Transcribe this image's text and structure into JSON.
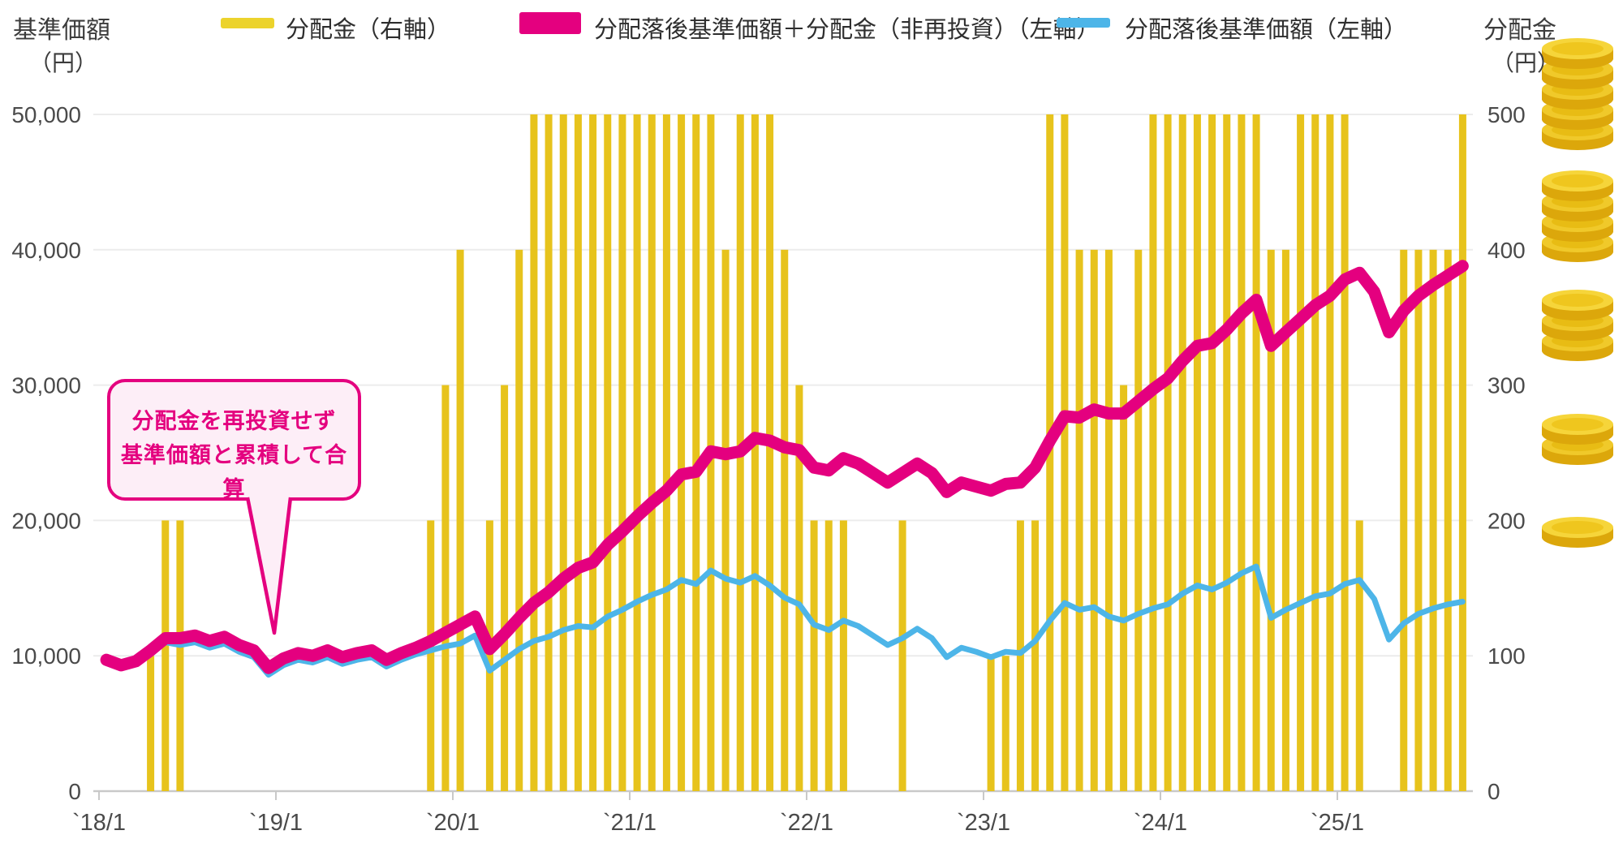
{
  "header": {
    "left_axis_title": "基準価額",
    "left_axis_unit": "（円）",
    "right_axis_title": "分配金",
    "right_axis_unit": "（円）",
    "legend": [
      {
        "label": "分配金（右軸）",
        "color": "#ecd32c",
        "type": "bar"
      },
      {
        "label": "分配落後基準価額＋分配金（非再投資）（左軸）",
        "color": "#e4007f",
        "type": "thick-line"
      },
      {
        "label": "分配落後基準価額（左軸）",
        "color": "#4db5e8",
        "type": "line"
      }
    ]
  },
  "annotation": {
    "line1": "分配金を再投資せず",
    "line2": "基準価額と累積して合算",
    "color": "#e4007f"
  },
  "colors": {
    "bar": "#e7c31c",
    "nav_plus_line": "#e4007f",
    "nav_line": "#4db5e8",
    "grid": "#ececec",
    "axis": "#c9c9c9",
    "tick_text": "#4a4a4a",
    "coin_top": "#f6d53a",
    "coin_side": "#dca70b"
  },
  "chart_data": {
    "type": "combo (monthly bars + two lines)",
    "months_start": "2018-01",
    "months_count": 93,
    "x_tick_labels": [
      "`18/1",
      "`19/1",
      "`20/1",
      "`21/1",
      "`22/1",
      "`23/1",
      "`24/1",
      "`25/1"
    ],
    "left_axis": {
      "label": "基準価額（円）",
      "range": [
        0,
        50000
      ],
      "tick_labels": [
        "0",
        "10,000",
        "20,000",
        "30,000",
        "40,000",
        "50,000"
      ]
    },
    "right_axis": {
      "label": "分配金（円）",
      "range": [
        0,
        500
      ],
      "tick_labels": [
        "0",
        "100",
        "200",
        "300",
        "400",
        "500"
      ]
    },
    "grid": "horizontal only",
    "legend_position": "top",
    "series": [
      {
        "name": "分配金（右軸）",
        "type": "bar",
        "axis": "right",
        "values": [
          0,
          0,
          0,
          100,
          200,
          200,
          0,
          0,
          0,
          0,
          0,
          0,
          0,
          0,
          0,
          0,
          0,
          0,
          0,
          0,
          0,
          0,
          200,
          300,
          400,
          0,
          200,
          300,
          400,
          500,
          500,
          500,
          500,
          500,
          500,
          500,
          500,
          500,
          500,
          500,
          500,
          500,
          400,
          500,
          500,
          500,
          400,
          300,
          200,
          200,
          200,
          0,
          0,
          0,
          200,
          0,
          0,
          0,
          0,
          0,
          100,
          100,
          200,
          200,
          500,
          500,
          400,
          400,
          400,
          300,
          400,
          500,
          500,
          500,
          500,
          500,
          500,
          500,
          500,
          400,
          400,
          500,
          500,
          500,
          500,
          200,
          0,
          0,
          400,
          400,
          400,
          400,
          500
        ]
      },
      {
        "name": "分配落後基準価額＋分配金（非再投資）（左軸）",
        "type": "line",
        "axis": "left",
        "values": [
          9700,
          9300,
          9600,
          10400,
          11300,
          11300,
          11500,
          11100,
          11400,
          10800,
          10400,
          9100,
          9800,
          10200,
          10000,
          10400,
          9900,
          10200,
          10400,
          9700,
          10200,
          10600,
          11100,
          11700,
          12300,
          12900,
          10500,
          11600,
          12800,
          13900,
          14700,
          15700,
          16500,
          16900,
          18200,
          19200,
          20300,
          21300,
          22200,
          23400,
          23600,
          25100,
          24900,
          25100,
          26100,
          25900,
          25400,
          25200,
          23900,
          23700,
          24600,
          24200,
          23500,
          22800,
          23500,
          24200,
          23500,
          22100,
          22800,
          22500,
          22200,
          22700,
          22800,
          23900,
          25900,
          27700,
          27600,
          28200,
          27900,
          27900,
          28800,
          29700,
          30500,
          31800,
          32900,
          33100,
          34100,
          35300,
          36300,
          32900,
          33900,
          34900,
          35900,
          36600,
          37800,
          38300,
          36900,
          33900,
          35500,
          36600,
          37400,
          38100,
          38800
        ]
      },
      {
        "name": "分配落後基準価額（左軸）",
        "type": "line",
        "axis": "left",
        "values": [
          9700,
          9300,
          9600,
          10300,
          11000,
          10800,
          11000,
          10600,
          10900,
          10300,
          9900,
          8600,
          9300,
          9700,
          9500,
          9900,
          9400,
          9700,
          9900,
          9200,
          9700,
          10100,
          10400,
          10700,
          10900,
          11500,
          8900,
          9700,
          10500,
          11100,
          11400,
          11900,
          12200,
          12100,
          12900,
          13400,
          14000,
          14500,
          14900,
          15600,
          15300,
          16300,
          15700,
          15400,
          15900,
          15200,
          14300,
          13800,
          12300,
          11900,
          12600,
          12200,
          11500,
          10800,
          11300,
          12000,
          11300,
          9900,
          10600,
          10300,
          9900,
          10300,
          10200,
          11100,
          12600,
          13900,
          13400,
          13600,
          12900,
          12600,
          13100,
          13500,
          13800,
          14600,
          15200,
          14900,
          15400,
          16100,
          16600,
          12800,
          13400,
          13900,
          14400,
          14600,
          15300,
          15600,
          14200,
          11200,
          12400,
          13100,
          13500,
          13800,
          14000
        ]
      }
    ],
    "coin_stacks": [
      {
        "at_right_value": 500,
        "coins": 5
      },
      {
        "at_right_value": 400,
        "coins": 4
      },
      {
        "at_right_value": 300,
        "coins": 3
      },
      {
        "at_right_value": 200,
        "coins": 2
      },
      {
        "at_right_value": 100,
        "coins": 1
      }
    ]
  }
}
